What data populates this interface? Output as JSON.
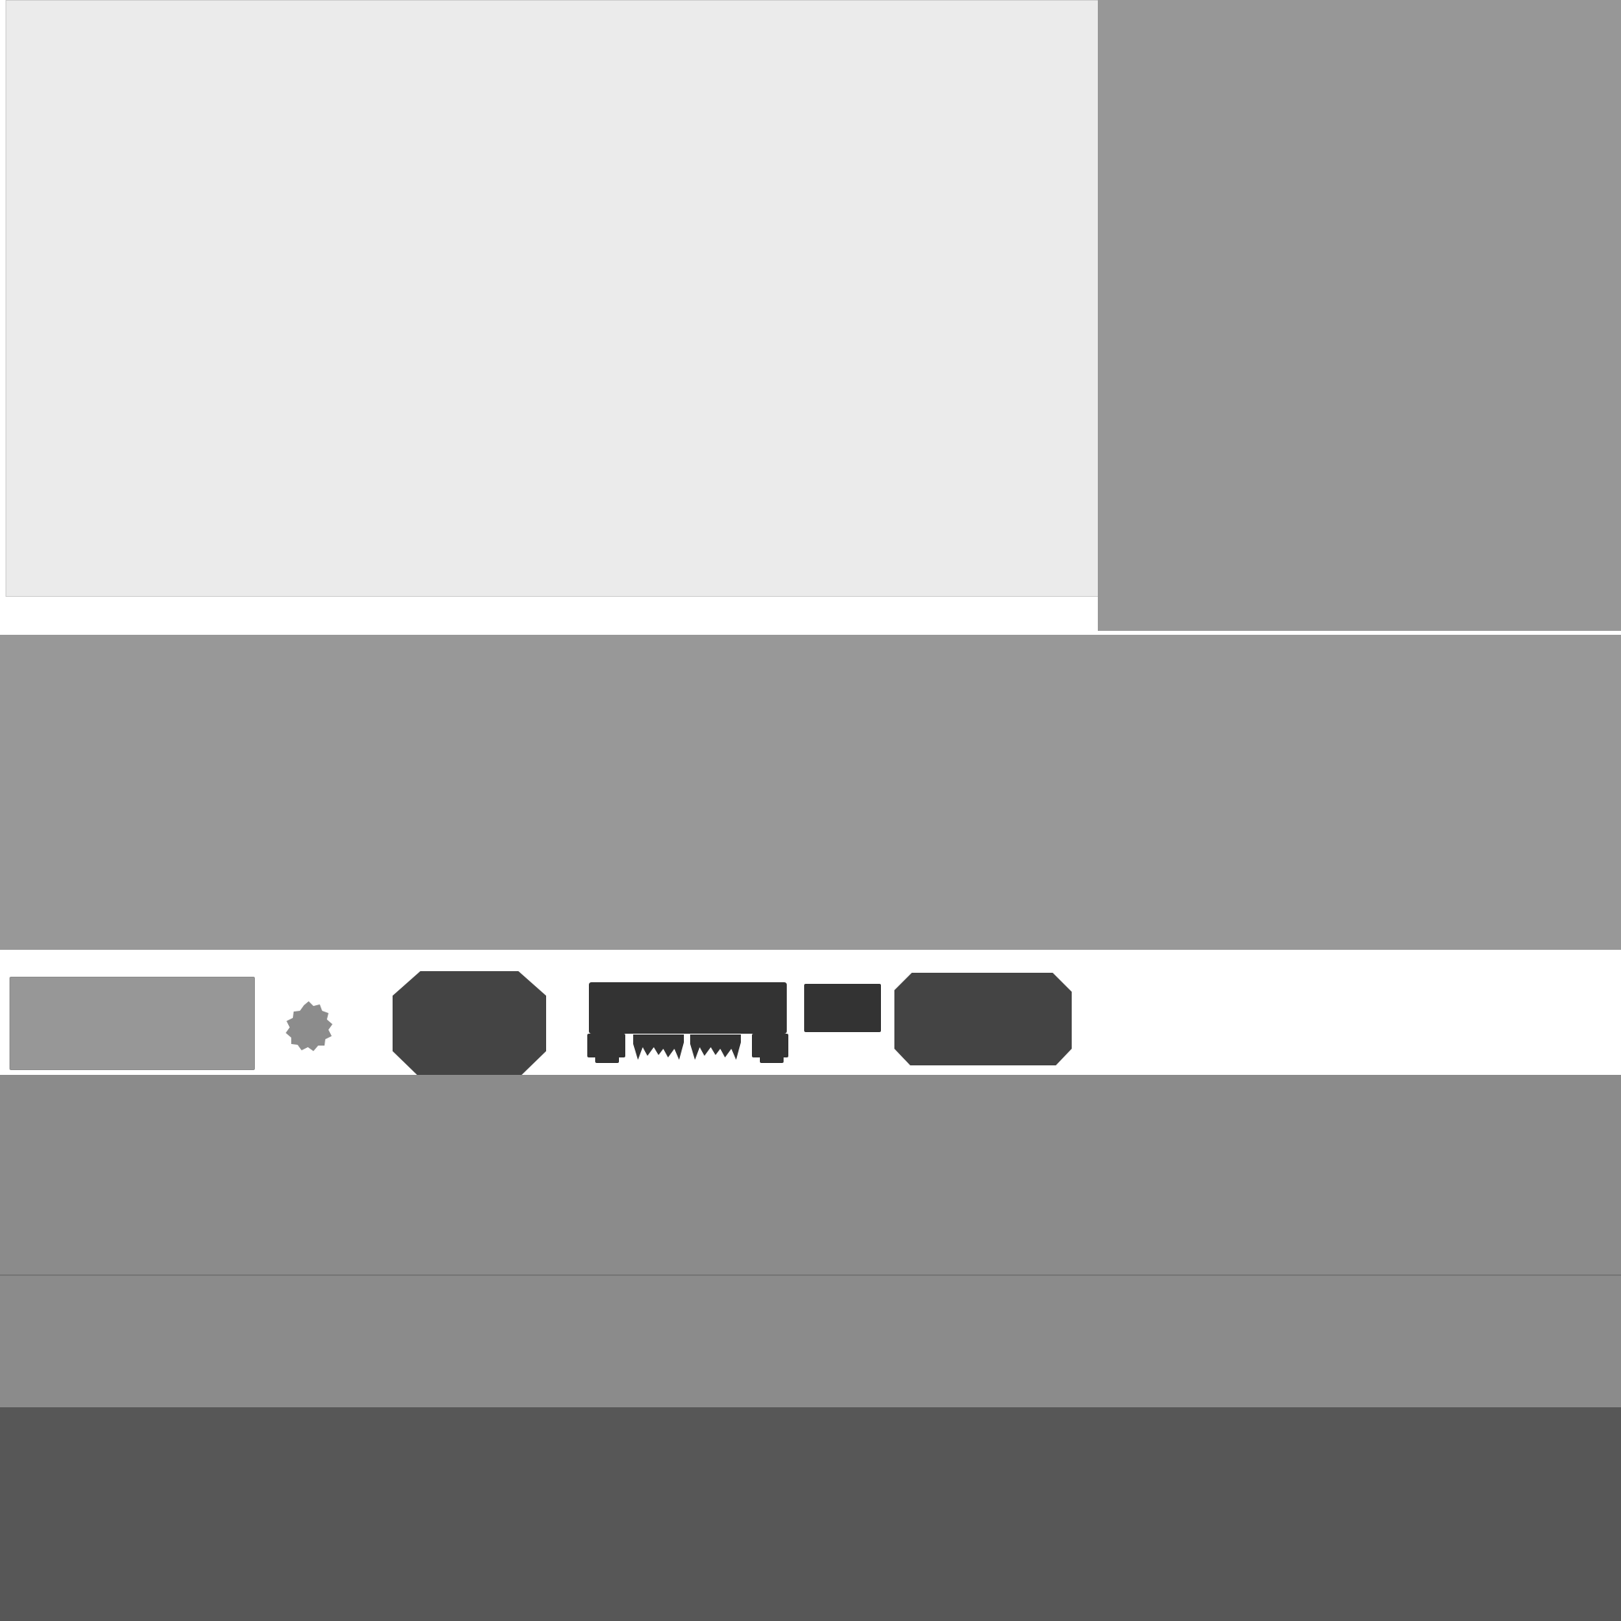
{
  "colors": {
    "page_bg": "#ffffff",
    "content_panel": "#ebebeb",
    "side_panel": "#979797",
    "banner": "#989898",
    "toolbar_strip": "#ffffff",
    "lower_band": "#8b8b8b",
    "divider": "#777777",
    "footer_band": "#8b8b8b",
    "bottom_bar": "#575757",
    "placeholder": "#979797",
    "icon_dark": "#444444",
    "icon_darker": "#333333",
    "icon_light": "#8c8c8c"
  },
  "icons": [
    "settings-gear-icon",
    "octagon-stop-icon",
    "keyboard-icon",
    "square-block-icon",
    "rounded-tag-icon"
  ]
}
